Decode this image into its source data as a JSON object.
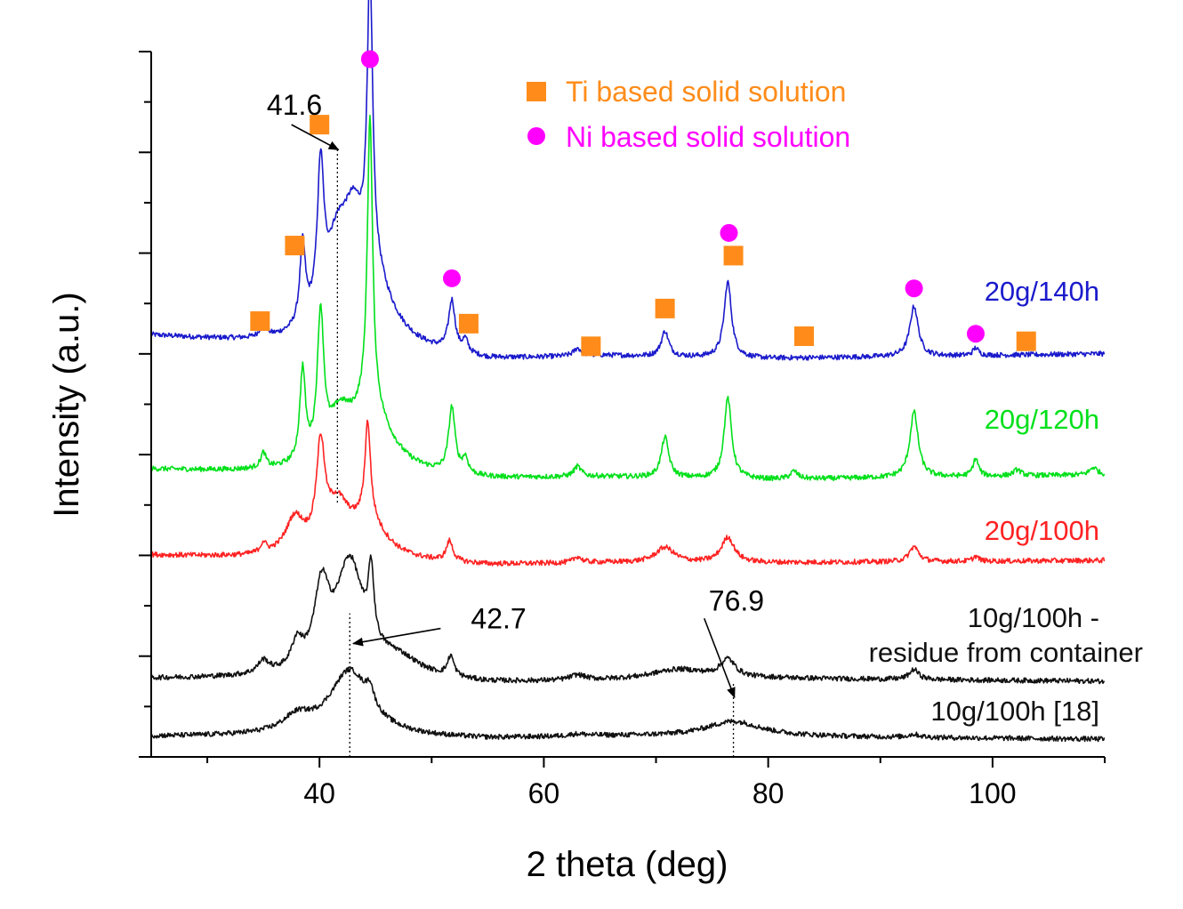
{
  "chart_data": {
    "type": "line",
    "title": "",
    "xlabel": "2 theta (deg)",
    "ylabel": "Intensity (a.u.)",
    "xlim": [
      25,
      110
    ],
    "ylim": [
      0,
      14
    ],
    "x_ticks": [
      40,
      60,
      80,
      100
    ],
    "x_tick_labels": [
      "40",
      "60",
      "80",
      "100"
    ],
    "y_tick_labels_shown": false,
    "grid": false,
    "legend": {
      "placement": "top-center",
      "entries": [
        {
          "label": "Ti based solid solution",
          "marker": "square",
          "color": "#ff8c1a"
        },
        {
          "label": "Ni based solid solution",
          "marker": "circle",
          "color": "#ff00ff"
        }
      ]
    },
    "series": [
      {
        "name": "20g/140h",
        "label": "20g/140h",
        "color": "#1a1acc",
        "offset": 8.1,
        "baseline": [
          [
            25,
            0.25
          ],
          [
            40,
            0.0
          ],
          [
            55,
            -0.25
          ],
          [
            65,
            -0.15
          ],
          [
            80,
            -0.2
          ],
          [
            110,
            -0.1
          ]
        ],
        "peaks": [
          {
            "x": 35.0,
            "h": 0.3,
            "w": 0.3
          },
          {
            "x": 38.5,
            "h": 1.6,
            "w": 0.3
          },
          {
            "x": 40.1,
            "h": 2.8,
            "w": 0.35
          },
          {
            "x": 41.6,
            "h": 1.6,
            "w": 1.3
          },
          {
            "x": 43.0,
            "h": 1.3,
            "w": 1.0
          },
          {
            "x": 44.5,
            "h": 5.7,
            "w": 0.28
          },
          {
            "x": 44.5,
            "h": 1.4,
            "w": 2.2
          },
          {
            "x": 51.8,
            "h": 1.0,
            "w": 0.35
          },
          {
            "x": 53.0,
            "h": 0.25,
            "w": 0.3
          },
          {
            "x": 63.0,
            "h": 0.15,
            "w": 0.4
          },
          {
            "x": 70.8,
            "h": 0.5,
            "w": 0.4
          },
          {
            "x": 76.4,
            "h": 1.5,
            "w": 0.4
          },
          {
            "x": 93.0,
            "h": 1.0,
            "w": 0.45
          },
          {
            "x": 98.5,
            "h": 0.15,
            "w": 0.3
          }
        ]
      },
      {
        "name": "20g/120h",
        "label": "20g/120h",
        "color": "#00e01a",
        "offset": 5.6,
        "baseline": [
          [
            25,
            0.1
          ],
          [
            40,
            0.0
          ],
          [
            55,
            -0.1
          ],
          [
            65,
            -0.05
          ],
          [
            80,
            -0.1
          ],
          [
            110,
            0.0
          ]
        ],
        "peaks": [
          {
            "x": 35.0,
            "h": 0.3,
            "w": 0.3
          },
          {
            "x": 38.5,
            "h": 1.8,
            "w": 0.3
          },
          {
            "x": 40.1,
            "h": 2.8,
            "w": 0.35
          },
          {
            "x": 41.8,
            "h": 0.8,
            "w": 1.2
          },
          {
            "x": 44.5,
            "h": 5.7,
            "w": 0.28
          },
          {
            "x": 44.5,
            "h": 1.3,
            "w": 2.2
          },
          {
            "x": 51.8,
            "h": 1.3,
            "w": 0.35
          },
          {
            "x": 53.0,
            "h": 0.3,
            "w": 0.3
          },
          {
            "x": 63.0,
            "h": 0.2,
            "w": 0.4
          },
          {
            "x": 70.8,
            "h": 0.8,
            "w": 0.4
          },
          {
            "x": 76.4,
            "h": 1.6,
            "w": 0.4
          },
          {
            "x": 82.3,
            "h": 0.15,
            "w": 0.4
          },
          {
            "x": 93.0,
            "h": 1.3,
            "w": 0.45
          },
          {
            "x": 98.5,
            "h": 0.35,
            "w": 0.3
          },
          {
            "x": 102.2,
            "h": 0.12,
            "w": 0.4
          },
          {
            "x": 109.0,
            "h": 0.15,
            "w": 0.4
          }
        ]
      },
      {
        "name": "20g/100h",
        "label": "20g/100h",
        "color": "#ff2222",
        "offset": 3.9,
        "baseline": [
          [
            25,
            0.1
          ],
          [
            40,
            0.0
          ],
          [
            55,
            -0.1
          ],
          [
            65,
            -0.05
          ],
          [
            80,
            -0.05
          ],
          [
            110,
            0.0
          ]
        ],
        "peaks": [
          {
            "x": 35.0,
            "h": 0.2,
            "w": 0.3
          },
          {
            "x": 37.8,
            "h": 0.7,
            "w": 1.0
          },
          {
            "x": 40.1,
            "h": 1.9,
            "w": 0.45
          },
          {
            "x": 41.6,
            "h": 0.9,
            "w": 1.3
          },
          {
            "x": 44.3,
            "h": 1.9,
            "w": 0.3
          },
          {
            "x": 44.3,
            "h": 0.7,
            "w": 2.0
          },
          {
            "x": 51.6,
            "h": 0.4,
            "w": 0.35
          },
          {
            "x": 63.0,
            "h": 0.12,
            "w": 0.4
          },
          {
            "x": 70.8,
            "h": 0.3,
            "w": 1.0
          },
          {
            "x": 76.4,
            "h": 0.5,
            "w": 0.7
          },
          {
            "x": 93.0,
            "h": 0.3,
            "w": 0.5
          },
          {
            "x": 98.5,
            "h": 0.1,
            "w": 0.3
          }
        ]
      },
      {
        "name": "10g/100h - residue from container",
        "label_lines": [
          "10g/100h -",
          "residue from container"
        ],
        "color": "#111111",
        "offset": 1.55,
        "baseline": [
          [
            25,
            0.0
          ],
          [
            40,
            0.0
          ],
          [
            55,
            -0.1
          ],
          [
            65,
            -0.05
          ],
          [
            80,
            0.0
          ],
          [
            110,
            -0.05
          ]
        ],
        "peaks": [
          {
            "x": 35.0,
            "h": 0.25,
            "w": 0.6
          },
          {
            "x": 38.0,
            "h": 0.5,
            "w": 0.6
          },
          {
            "x": 40.2,
            "h": 1.5,
            "w": 0.8
          },
          {
            "x": 42.7,
            "h": 2.2,
            "w": 1.5
          },
          {
            "x": 44.6,
            "h": 1.4,
            "w": 0.3
          },
          {
            "x": 47.0,
            "h": 0.35,
            "w": 2.5
          },
          {
            "x": 51.7,
            "h": 0.4,
            "w": 0.35
          },
          {
            "x": 63.0,
            "h": 0.1,
            "w": 0.8
          },
          {
            "x": 72.0,
            "h": 0.2,
            "w": 3.0
          },
          {
            "x": 76.4,
            "h": 0.35,
            "w": 0.8
          },
          {
            "x": 93.0,
            "h": 0.2,
            "w": 0.5
          }
        ]
      },
      {
        "name": "10g/100h [18]",
        "label": "10g/100h [18]",
        "color": "#111111",
        "offset": 0.4,
        "baseline": [
          [
            25,
            0.0
          ],
          [
            40,
            0.0
          ],
          [
            55,
            -0.05
          ],
          [
            65,
            0.0
          ],
          [
            80,
            0.0
          ],
          [
            110,
            -0.05
          ]
        ],
        "peaks": [
          {
            "x": 38.0,
            "h": 0.3,
            "w": 1.5
          },
          {
            "x": 42.7,
            "h": 1.3,
            "w": 2.2
          },
          {
            "x": 44.5,
            "h": 0.35,
            "w": 0.4
          },
          {
            "x": 63.0,
            "h": 0.04,
            "w": 1.0
          },
          {
            "x": 76.9,
            "h": 0.3,
            "w": 3.0
          },
          {
            "x": 93.0,
            "h": 0.06,
            "w": 0.6
          }
        ]
      }
    ],
    "markers": [
      {
        "kind": "ti",
        "x": 34.7,
        "y": 8.65
      },
      {
        "kind": "ti",
        "x": 37.8,
        "y": 10.15
      },
      {
        "kind": "ti",
        "x": 40.0,
        "y": 12.55
      },
      {
        "kind": "ni",
        "x": 44.5,
        "y": 13.85
      },
      {
        "kind": "ni",
        "x": 51.8,
        "y": 9.5
      },
      {
        "kind": "ti",
        "x": 53.3,
        "y": 8.6
      },
      {
        "kind": "ti",
        "x": 64.2,
        "y": 8.15
      },
      {
        "kind": "ti",
        "x": 70.8,
        "y": 8.9
      },
      {
        "kind": "ni",
        "x": 76.5,
        "y": 10.4
      },
      {
        "kind": "ti",
        "x": 76.9,
        "y": 9.95
      },
      {
        "kind": "ti",
        "x": 83.2,
        "y": 8.35
      },
      {
        "kind": "ni",
        "x": 93.0,
        "y": 9.3
      },
      {
        "kind": "ni",
        "x": 98.5,
        "y": 8.4
      },
      {
        "kind": "ti",
        "x": 103.0,
        "y": 8.25
      }
    ],
    "annotations": [
      {
        "text": "41.6",
        "x_value": 41.6,
        "ref_line": {
          "x": 41.6,
          "y_from": 5.05,
          "y_to": 12.1
        },
        "arrow_from": [
          37.5,
          12.55
        ],
        "arrow_to": [
          41.7,
          12.05
        ],
        "text_pos": [
          35.3,
          12.75
        ]
      },
      {
        "text": "42.7",
        "x_value": 42.7,
        "ref_line": {
          "x": 42.7,
          "y_from": 0.0,
          "y_to": 2.85
        },
        "arrow_from": [
          50.8,
          2.55
        ],
        "arrow_to": [
          43.0,
          2.25
        ],
        "text_pos": [
          53.5,
          2.55
        ]
      },
      {
        "text": "76.9",
        "x_value": 76.9,
        "ref_line": {
          "x": 76.9,
          "y_from": 0.0,
          "y_to": 1.5
        },
        "arrow_from": [
          74.3,
          2.75
        ],
        "arrow_to": [
          77.0,
          1.18
        ],
        "text_pos": [
          74.7,
          2.9
        ]
      }
    ]
  }
}
